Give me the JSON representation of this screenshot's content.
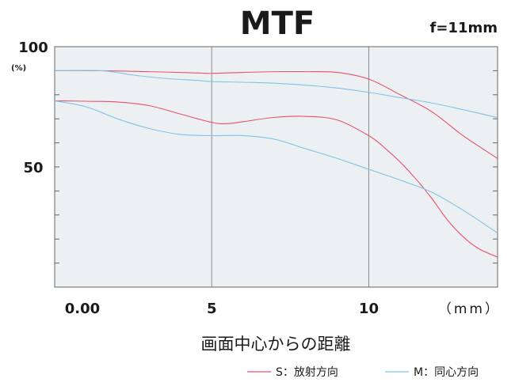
{
  "chart_data": {
    "type": "line",
    "title": "MTF",
    "focal_length": "f=11mm",
    "xlabel": "画面中心からの距離",
    "x_unit": "（mm）",
    "y_unit": "(%)",
    "xlim": [
      0,
      14.1
    ],
    "ylim": [
      0,
      100
    ],
    "x_ticks": [
      {
        "value": 0,
        "label": "0.00"
      },
      {
        "value": 5,
        "label": "5"
      },
      {
        "value": 10,
        "label": "10"
      }
    ],
    "y_ticks": [
      {
        "value": 100,
        "label": "100"
      },
      {
        "value": 50,
        "label": "50"
      }
    ],
    "grid": true,
    "legend_position": "bottom-right",
    "series": [
      {
        "name": "S：放射方向",
        "color": "#e8506a",
        "group": "upper",
        "x": [
          0,
          1.5,
          3,
          4.5,
          5,
          6,
          7,
          8,
          9,
          10,
          11,
          12,
          13,
          14.1
        ],
        "y": [
          90,
          90,
          89.6,
          89.1,
          88.9,
          89.3,
          89.6,
          89.6,
          89.3,
          86.5,
          80,
          73,
          63,
          53.5
        ]
      },
      {
        "name": "M：同心方向",
        "color": "#7ec4e6",
        "group": "upper",
        "x": [
          0,
          1.5,
          2.5,
          3.5,
          4.5,
          5,
          6,
          7,
          8,
          9,
          10,
          11,
          12,
          13,
          14.1
        ],
        "y": [
          90,
          90,
          88.2,
          86.8,
          86,
          85.5,
          85.2,
          84.8,
          84,
          82.8,
          81,
          78.8,
          76.6,
          73.8,
          70.5
        ]
      },
      {
        "name": "S：放射方向",
        "color": "#e8506a",
        "group": "lower",
        "x": [
          0,
          1,
          2,
          3,
          4,
          5,
          5.5,
          6,
          7,
          8,
          9,
          10,
          10.5,
          11,
          11.5,
          12,
          12.5,
          13,
          13.5,
          14.1
        ],
        "y": [
          77.5,
          77.3,
          77,
          75.5,
          72,
          68.5,
          68,
          68.8,
          70.6,
          71,
          69.5,
          63,
          58,
          52,
          45,
          37,
          28,
          21,
          16,
          12.5
        ]
      },
      {
        "name": "M：同心方向",
        "color": "#7ec4e6",
        "group": "lower",
        "x": [
          0,
          1,
          2,
          3,
          4,
          5,
          6,
          7,
          8,
          9,
          10,
          11,
          12,
          13,
          14.1
        ],
        "y": [
          77.5,
          75,
          70,
          66,
          63.5,
          63,
          63,
          61.5,
          57.5,
          53.5,
          49,
          44.5,
          39.5,
          32,
          22.5
        ]
      }
    ],
    "legend": [
      {
        "label": "S：放射方向",
        "color": "#e8506a"
      },
      {
        "label": "M：同心方向",
        "color": "#7ec4e6"
      }
    ]
  }
}
